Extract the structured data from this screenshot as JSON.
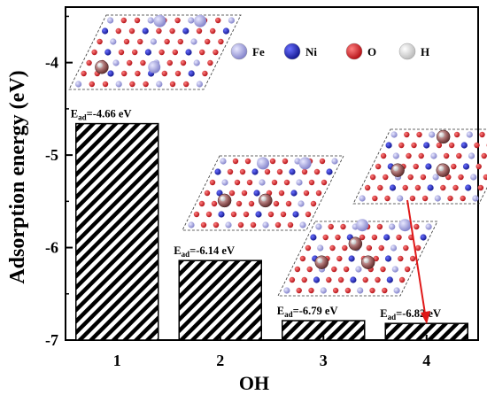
{
  "chart_data": {
    "type": "bar",
    "title": "",
    "xlabel": "OH",
    "ylabel": "Adsorption energy (eV)",
    "ylim": [
      -7.0,
      -3.4
    ],
    "yticks": [
      -4,
      -5,
      -6,
      -7
    ],
    "categories": [
      "1",
      "2",
      "3",
      "4"
    ],
    "values": [
      -4.66,
      -6.14,
      -6.79,
      -6.82
    ],
    "bar_fill": "diagonal hatch (black on white)",
    "data_labels": [
      {
        "prefix": "E",
        "sub": "ad",
        "text": "=-4.66 eV"
      },
      {
        "prefix": "E",
        "sub": "ad",
        "text": "=-6.14 eV"
      },
      {
        "prefix": "E",
        "sub": "ad",
        "text": "=-6.79 eV"
      },
      {
        "prefix": "E",
        "sub": "ad",
        "text": "=-6.82 eV"
      }
    ],
    "legend": {
      "placement": "top-right",
      "entries": [
        {
          "label": "Fe",
          "color": "#9a9ad8"
        },
        {
          "label": "Ni",
          "color": "#1c24b8"
        },
        {
          "label": "O",
          "color": "#d9141a"
        },
        {
          "label": "H",
          "color": "#e8e8e8"
        }
      ]
    },
    "arrow_color": "#e01818"
  }
}
